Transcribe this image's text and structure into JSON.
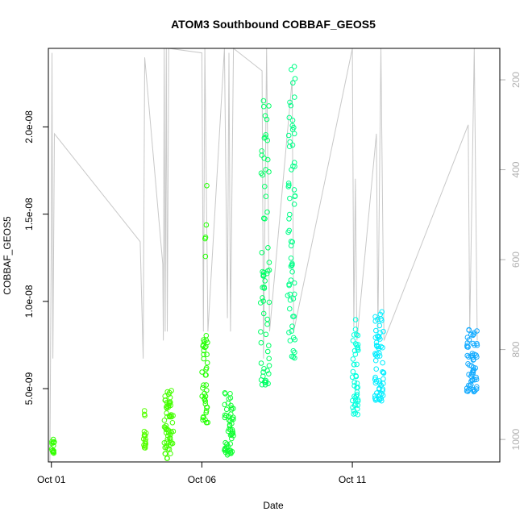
{
  "chart_data": {
    "type": "scatter",
    "title": "ATOM3 Southbound COBBAF_GEOS5",
    "xlabel": "Date",
    "ylabel": "COBBAF_GEOS5",
    "x_unit": "days",
    "xlim": [
      0.9,
      15.9
    ],
    "ylim": [
      8e-10,
      2.45e-08
    ],
    "y2lim": [
      1050,
      130
    ],
    "y2_reversed": true,
    "x_ticks": [
      {
        "day": 1,
        "label": "Oct 01"
      },
      {
        "day": 6,
        "label": "Oct 06"
      },
      {
        "day": 11,
        "label": "Oct 11"
      }
    ],
    "y_ticks": [
      {
        "value": 5e-09,
        "label": "5.0e-09"
      },
      {
        "value": 1e-08,
        "label": "1.0e-08"
      },
      {
        "value": 1.5e-08,
        "label": "1.5e-08"
      },
      {
        "value": 2e-08,
        "label": "2.0e-08"
      }
    ],
    "y2_ticks": [
      {
        "value": 200,
        "label": "200"
      },
      {
        "value": 400,
        "label": "400"
      },
      {
        "value": 600,
        "label": "600"
      },
      {
        "value": 800,
        "label": "800"
      },
      {
        "value": 1000,
        "label": "1000"
      }
    ],
    "secondary_series_color": "#c8c8c8",
    "profiles": [
      {
        "x0": 1.0,
        "x1": 1.1,
        "ymin": 1.2e-09,
        "ymax": 2.1e-09,
        "color": "#33ff00",
        "n": 14
      },
      {
        "x0": 4.05,
        "x1": 4.15,
        "ymin": 1.6e-09,
        "ymax": 3.9e-09,
        "color": "#55ff00",
        "n": 18
      },
      {
        "x0": 4.75,
        "x1": 5.05,
        "ymin": 1e-09,
        "ymax": 4.9e-09,
        "color": "#44ff00",
        "n": 60
      },
      {
        "x0": 6.0,
        "x1": 6.2,
        "ymin": 3e-09,
        "ymax": 8.1e-09,
        "color": "#22ff00",
        "n": 40
      },
      {
        "x0": 6.1,
        "x1": 6.2,
        "ymin": 1.25e-08,
        "ymax": 1.72e-08,
        "color": "#22ff00",
        "n": 5
      },
      {
        "x0": 6.75,
        "x1": 7.05,
        "ymin": 1.2e-09,
        "ymax": 4.8e-09,
        "color": "#11ff33",
        "n": 55
      },
      {
        "x0": 7.95,
        "x1": 8.25,
        "ymin": 5.2e-09,
        "ymax": 2.2e-08,
        "color": "#00ff66",
        "n": 65
      },
      {
        "x0": 8.85,
        "x1": 9.1,
        "ymin": 6.7e-09,
        "ymax": 2.35e-08,
        "color": "#00ff88",
        "n": 65
      },
      {
        "x0": 11.0,
        "x1": 11.2,
        "ymin": 3.5e-09,
        "ymax": 9.2e-09,
        "color": "#00ffdd",
        "n": 45
      },
      {
        "x0": 11.75,
        "x1": 12.05,
        "ymin": 4.3e-09,
        "ymax": 9.7e-09,
        "color": "#00eeff",
        "n": 60
      },
      {
        "x0": 14.8,
        "x1": 15.15,
        "ymin": 4.8e-09,
        "ymax": 8.5e-09,
        "color": "#11aaff",
        "n": 60
      }
    ],
    "trajectory": [
      [
        0.95,
        1050
      ],
      [
        1.0,
        520
      ],
      [
        1.02,
        140
      ],
      [
        1.05,
        820
      ],
      [
        1.1,
        320
      ],
      [
        3.95,
        560
      ],
      [
        4.05,
        820
      ],
      [
        4.1,
        150
      ],
      [
        4.7,
        610
      ],
      [
        4.72,
        780
      ],
      [
        4.75,
        130
      ],
      [
        4.78,
        760
      ],
      [
        4.82,
        130
      ],
      [
        4.85,
        760
      ],
      [
        4.9,
        130
      ],
      [
        6.0,
        140
      ],
      [
        6.05,
        760
      ],
      [
        6.1,
        130
      ],
      [
        6.2,
        760
      ],
      [
        6.75,
        120
      ],
      [
        6.85,
        730
      ],
      [
        6.9,
        140
      ],
      [
        6.95,
        760
      ],
      [
        7.05,
        130
      ],
      [
        8.0,
        180
      ],
      [
        8.05,
        820
      ],
      [
        8.15,
        130
      ],
      [
        8.25,
        760
      ],
      [
        9.0,
        200
      ],
      [
        9.05,
        760
      ],
      [
        11.0,
        130
      ],
      [
        11.05,
        750
      ],
      [
        11.1,
        420
      ],
      [
        11.15,
        780
      ],
      [
        11.8,
        320
      ],
      [
        11.85,
        760
      ],
      [
        11.95,
        130
      ],
      [
        12.05,
        780
      ],
      [
        14.85,
        300
      ],
      [
        14.9,
        760
      ],
      [
        15.05,
        130
      ],
      [
        15.15,
        780
      ]
    ]
  }
}
